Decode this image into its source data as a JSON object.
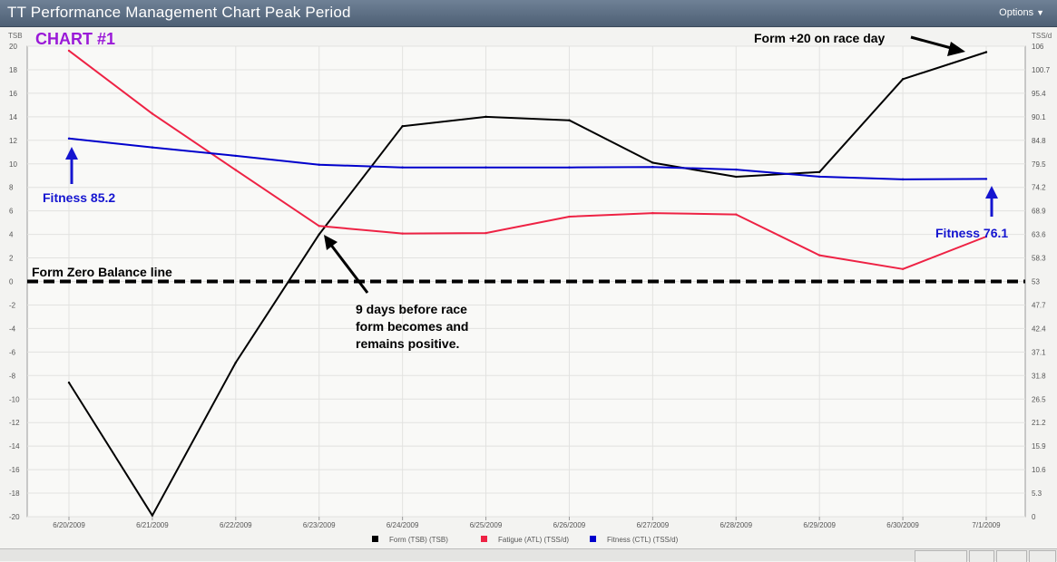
{
  "window": {
    "title": "TT Performance Management Chart Peak Period",
    "options_label": "Options"
  },
  "chart_data": {
    "type": "line",
    "left_axis_label": "TSB",
    "right_axis_label": "TSS/d",
    "x": [
      "6/20/2009",
      "6/21/2009",
      "6/22/2009",
      "6/23/2009",
      "6/24/2009",
      "6/25/2009",
      "6/26/2009",
      "6/27/2009",
      "6/28/2009",
      "6/29/2009",
      "6/30/2009",
      "7/1/2009"
    ],
    "ylim_left": [
      -20,
      20
    ],
    "yticks_left": [
      "20",
      "18",
      "16",
      "14",
      "12",
      "10",
      "8",
      "6",
      "4",
      "2",
      "0",
      "-2",
      "-4",
      "-6",
      "-8",
      "-10",
      "-12",
      "-14",
      "-16",
      "-18",
      "-20"
    ],
    "ylim_right": [
      0,
      106
    ],
    "yticks_right": [
      "106",
      "100.7",
      "95.4",
      "90.1",
      "84.8",
      "79.5",
      "74.2",
      "68.9",
      "63.6",
      "58.3",
      "53",
      "47.7",
      "42.4",
      "37.1",
      "31.8",
      "26.5",
      "21.2",
      "15.9",
      "10.6",
      "5.3",
      "0"
    ],
    "grid": true,
    "legend_position": "bottom",
    "series": [
      {
        "name": "Form (TSB) (TSB)",
        "axis": "left",
        "color": "#000000",
        "values": [
          -8.6,
          -19.9,
          -6.9,
          4,
          13.2,
          14,
          13.7,
          10.1,
          8.9,
          9.3,
          17.2,
          19.5
        ]
      },
      {
        "name": "Fatigue (ATL) (TSS/d)",
        "axis": "right",
        "color": "#ee2244",
        "values": [
          105,
          90.8,
          78.1,
          65.5,
          63.8,
          63.9,
          67.6,
          68.4,
          68.1,
          58.9,
          55.8,
          63.1
        ]
      },
      {
        "name": "Fitness (CTL) (TSS/d)",
        "axis": "right",
        "color": "#0000cc",
        "values": [
          85.2,
          83.2,
          81.3,
          79.3,
          78.7,
          78.7,
          78.7,
          78.8,
          78.2,
          76.6,
          76.0,
          76.1
        ]
      }
    ],
    "annotations": {
      "chart_label": "CHART #1",
      "chart_label_color": "#9a19d8",
      "fitness_start": "Fitness 85.2",
      "fitness_end": "Fitness 76.1",
      "fitness_color": "#1515d0",
      "form_race_day": "Form +20 on race day",
      "zero_line": "Form Zero Balance line",
      "zero_line_value": 0,
      "note_lines": [
        "9 days before race",
        "form becomes and",
        "remains positive."
      ]
    }
  }
}
